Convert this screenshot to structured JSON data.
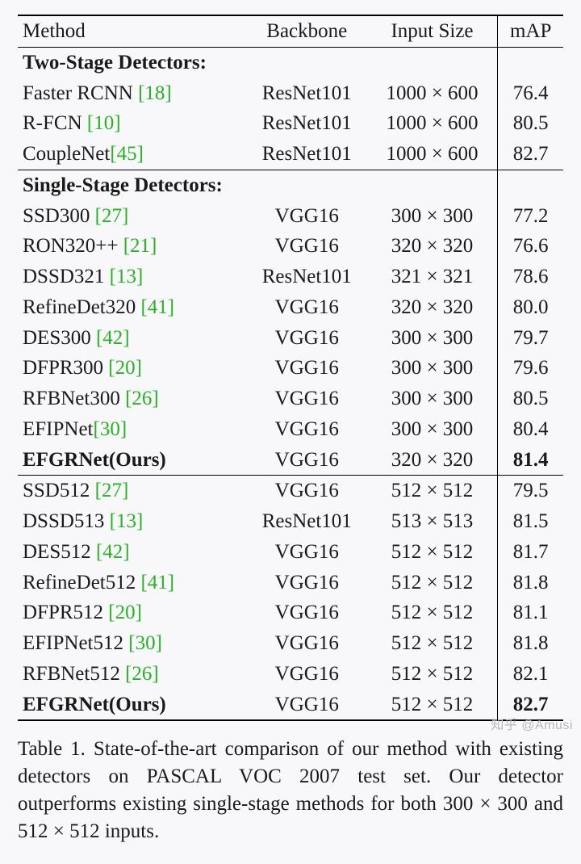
{
  "colors": {
    "cite": "#27b323",
    "text": "#1a1a1a",
    "bg": "#f8f8fa",
    "watermark": "#b8b8b8"
  },
  "header": {
    "method": "Method",
    "backbone": "Backbone",
    "input": "Input Size",
    "map": "mAP"
  },
  "sections": {
    "two": "Two-Stage Detectors:",
    "single": "Single-Stage Detectors:"
  },
  "rows": {
    "r0": {
      "name": "Faster RCNN ",
      "cite": "[18]",
      "backbone": "ResNet101",
      "input": "1000 × 600",
      "map": "76.4"
    },
    "r1": {
      "name": "R-FCN ",
      "cite": "[10]",
      "backbone": "ResNet101",
      "input": "1000 × 600",
      "map": "80.5"
    },
    "r2": {
      "name": "CoupleNet",
      "cite": "[45]",
      "backbone": "ResNet101",
      "input": "1000 × 600",
      "map": "82.7"
    },
    "r3": {
      "name": "SSD300 ",
      "cite": "[27]",
      "backbone": "VGG16",
      "input": "300 × 300",
      "map": "77.2"
    },
    "r4": {
      "name": "RON320++ ",
      "cite": "[21]",
      "backbone": "VGG16",
      "input": "320 × 320",
      "map": "76.6"
    },
    "r5": {
      "name": "DSSD321 ",
      "cite": "[13]",
      "backbone": "ResNet101",
      "input": "321 × 321",
      "map": "78.6"
    },
    "r6": {
      "name": "RefineDet320 ",
      "cite": "[41]",
      "backbone": "VGG16",
      "input": "320 × 320",
      "map": "80.0"
    },
    "r7": {
      "name": "DES300 ",
      "cite": "[42]",
      "backbone": "VGG16",
      "input": "300 × 300",
      "map": "79.7"
    },
    "r8": {
      "name": "DFPR300 ",
      "cite": "[20]",
      "backbone": "VGG16",
      "input": "300 × 300",
      "map": "79.6"
    },
    "r9": {
      "name": "RFBNet300 ",
      "cite": "[26]",
      "backbone": "VGG16",
      "input": "300 × 300",
      "map": "80.5"
    },
    "r10": {
      "name": "EFIPNet",
      "cite": "[30]",
      "backbone": "VGG16",
      "input": "300 × 300",
      "map": "80.4"
    },
    "r11": {
      "name": "EFGRNet(Ours)",
      "cite": "",
      "backbone": "VGG16",
      "input": "320 × 320",
      "map": "81.4"
    },
    "r12": {
      "name": "SSD512 ",
      "cite": "[27]",
      "backbone": "VGG16",
      "input": "512 × 512",
      "map": "79.5"
    },
    "r13": {
      "name": "DSSD513 ",
      "cite": "[13]",
      "backbone": "ResNet101",
      "input": "513 × 513",
      "map": "81.5"
    },
    "r14": {
      "name": "DES512 ",
      "cite": "[42]",
      "backbone": "VGG16",
      "input": "512 × 512",
      "map": "81.7"
    },
    "r15": {
      "name": "RefineDet512 ",
      "cite": "[41]",
      "backbone": "VGG16",
      "input": "512 × 512",
      "map": "81.8"
    },
    "r16": {
      "name": "DFPR512 ",
      "cite": "[20]",
      "backbone": "VGG16",
      "input": "512 × 512",
      "map": "81.1"
    },
    "r17": {
      "name": "EFIPNet512 ",
      "cite": "[30]",
      "backbone": "VGG16",
      "input": "512 × 512",
      "map": "81.8"
    },
    "r18": {
      "name": "RFBNet512 ",
      "cite": "[26]",
      "backbone": "VGG16",
      "input": "512 × 512",
      "map": "82.1"
    },
    "r19": {
      "name": "EFGRNet(Ours)",
      "cite": "",
      "backbone": "VGG16",
      "input": "512 × 512",
      "map": "82.7"
    }
  },
  "caption": "Table 1. State-of-the-art comparison of our method with existing detectors on PASCAL VOC 2007 test set. Our detector outperforms existing single-stage methods for both 300 × 300 and 512 × 512 inputs.",
  "watermark": "知乎 @Amusi"
}
